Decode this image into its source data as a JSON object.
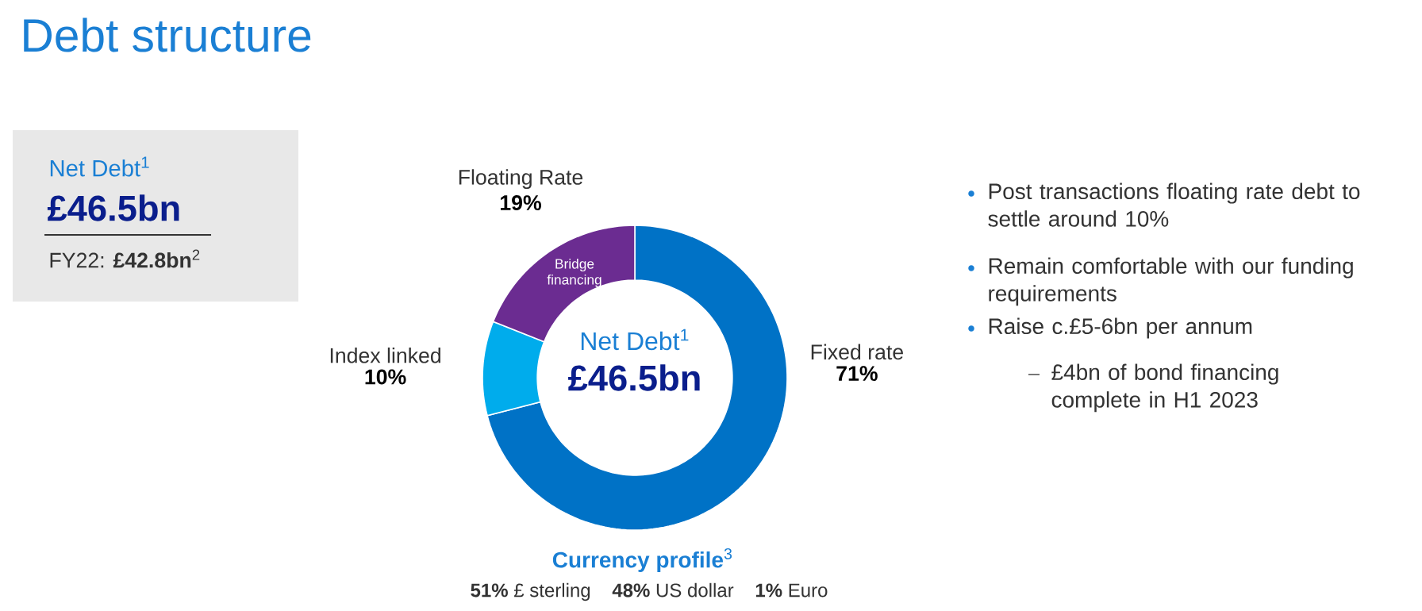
{
  "chart_data": {
    "type": "donut",
    "title": "Debt structure",
    "categories": [
      "Fixed rate",
      "Index linked",
      "Floating Rate"
    ],
    "values": [
      71,
      10,
      19
    ],
    "value_labels": [
      "71%",
      "10%",
      "19%"
    ],
    "colors": [
      "#0072c6",
      "#00acec",
      "#6b2c91"
    ],
    "annotations": [
      "Net Debt$^{1}$",
      "£46.5bn",
      "FY22: **£42.8bn**$^{2}$",
      "Net Debt$^{1}$",
      "£46.5bn",
      "Bridge financing",
      "**Currency profile**$^{3}$",
      "**51%** £ sterling",
      "**48%** US dollar",
      "**1%** Euro",
      "Post transactions floating rate debt to settle around 10%",
      "Remain comfortable with our funding requirements",
      "Raise c.£5-6bn per annum",
      "£4bn of bond financing complete in H1 2023"
    ]
  }
}
